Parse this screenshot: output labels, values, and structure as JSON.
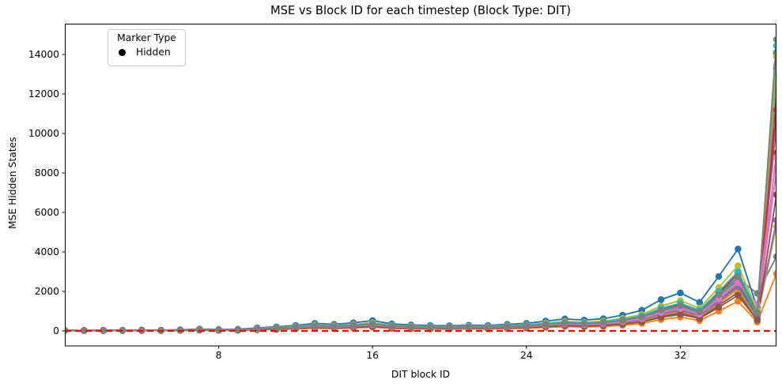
{
  "title": "MSE vs Block ID for each timestep (Block Type: DIT)",
  "axes": {
    "xlabel": "DIT block ID",
    "ylabel": "MSE Hidden States",
    "xticks": [
      8,
      16,
      24,
      32
    ],
    "yticks": [
      0,
      2000,
      4000,
      6000,
      8000,
      10000,
      12000,
      14000
    ],
    "xlim": [
      0,
      37
    ],
    "ylim": [
      -760,
      15560
    ],
    "grid": false
  },
  "legend": {
    "title": "Marker Type",
    "position": "upper left",
    "entries": [
      {
        "label": "Hidden",
        "marker": "circle",
        "color": "#000000"
      }
    ]
  },
  "baseline": {
    "y": 0,
    "color": "#ff0000",
    "style": "dashed"
  },
  "chart_data": {
    "type": "line",
    "marker": "circle",
    "x": [
      0,
      1,
      2,
      3,
      4,
      5,
      6,
      7,
      8,
      9,
      10,
      11,
      12,
      13,
      14,
      15,
      16,
      17,
      18,
      19,
      20,
      21,
      22,
      23,
      24,
      25,
      26,
      27,
      28,
      29,
      30,
      31,
      32,
      33,
      34,
      35,
      36,
      37
    ],
    "series": [
      {
        "name": "line-01",
        "color": "#1f77b4",
        "values": [
          19,
          15,
          22,
          21,
          26,
          22,
          34,
          52,
          41,
          49,
          82,
          112,
          150,
          210,
          180,
          225,
          285,
          195,
          165,
          150,
          142,
          158,
          150,
          180,
          210,
          270,
          330,
          300,
          338,
          435,
          570,
          862,
          1050,
          788,
          1500,
          2250,
          700,
          13300
        ]
      },
      {
        "name": "line-02",
        "color": "#ff7f0e",
        "values": [
          12,
          10,
          15,
          14,
          18,
          15,
          22,
          35,
          28,
          33,
          55,
          75,
          100,
          140,
          120,
          150,
          190,
          130,
          110,
          100,
          95,
          105,
          100,
          120,
          140,
          180,
          220,
          200,
          225,
          290,
          380,
          575,
          700,
          525,
          1000,
          1500,
          450,
          2900
        ]
      },
      {
        "name": "line-03",
        "color": "#2ca02c",
        "values": [
          21,
          17,
          26,
          24,
          30,
          26,
          38,
          60,
          47,
          55,
          94,
          128,
          170,
          238,
          204,
          255,
          323,
          221,
          187,
          170,
          162,
          179,
          170,
          204,
          238,
          306,
          374,
          340,
          383,
          493,
          646,
          978,
          1190,
          893,
          1700,
          2600,
          800,
          12400
        ]
      },
      {
        "name": "line-04",
        "color": "#d62728",
        "values": [
          24,
          19,
          29,
          27,
          33,
          29,
          43,
          67,
          52,
          62,
          105,
          143,
          190,
          266,
          228,
          285,
          361,
          247,
          209,
          190,
          181,
          200,
          190,
          228,
          266,
          342,
          418,
          380,
          428,
          551,
          722,
          1093,
          1330,
          998,
          1900,
          2900,
          950,
          11800
        ]
      },
      {
        "name": "line-05",
        "color": "#9467bd",
        "values": [
          20,
          16,
          23,
          22,
          27,
          23,
          35,
          55,
          43,
          51,
          86,
          117,
          156,
          218,
          187,
          234,
          296,
          203,
          172,
          156,
          148,
          164,
          156,
          187,
          218,
          281,
          343,
          312,
          351,
          452,
          593,
          897,
          1092,
          819,
          1560,
          2350,
          750,
          10400
        ]
      },
      {
        "name": "line-06",
        "color": "#8c564b",
        "values": [
          16,
          13,
          20,
          18,
          23,
          20,
          29,
          46,
          36,
          42,
          72,
          98,
          130,
          182,
          156,
          195,
          247,
          169,
          143,
          130,
          124,
          137,
          130,
          156,
          182,
          234,
          286,
          260,
          293,
          377,
          494,
          748,
          910,
          683,
          1300,
          1950,
          600,
          9000
        ]
      },
      {
        "name": "line-07",
        "color": "#e377c2",
        "values": [
          21,
          17,
          25,
          23,
          29,
          25,
          37,
          58,
          46,
          54,
          91,
          125,
          166,
          232,
          199,
          249,
          315,
          216,
          183,
          166,
          158,
          174,
          166,
          199,
          232,
          299,
          365,
          332,
          374,
          481,
          631,
          955,
          1162,
          872,
          1660,
          2500,
          800,
          8100
        ]
      },
      {
        "name": "line-08",
        "color": "#7f7f7f",
        "values": [
          22,
          18,
          26,
          25,
          31,
          26,
          40,
          62,
          48,
          57,
          97,
          132,
          176,
          246,
          211,
          264,
          334,
          229,
          194,
          176,
          167,
          185,
          176,
          211,
          246,
          317,
          387,
          352,
          396,
          510,
          669,
          1012,
          1232,
          924,
          1760,
          2650,
          1900,
          3760
        ]
      },
      {
        "name": "line-09",
        "color": "#bcbd22",
        "values": [
          18,
          14,
          21,
          20,
          25,
          21,
          32,
          49,
          39,
          46,
          77,
          105,
          140,
          196,
          168,
          210,
          266,
          182,
          154,
          140,
          133,
          147,
          140,
          168,
          196,
          252,
          308,
          280,
          315,
          406,
          532,
          805,
          980,
          735,
          1400,
          2100,
          650,
          5300
        ]
      },
      {
        "name": "line-10",
        "color": "#17becf",
        "values": [
          23,
          18,
          27,
          25,
          32,
          27,
          41,
          63,
          50,
          59,
          99,
          135,
          180,
          252,
          216,
          270,
          342,
          234,
          198,
          180,
          171,
          189,
          180,
          216,
          252,
          324,
          396,
          360,
          405,
          522,
          684,
          1035,
          1260,
          945,
          1800,
          2700,
          850,
          12800
        ]
      },
      {
        "name": "line-11",
        "color": "#1f77b4",
        "values": [
          35,
          28,
          41,
          39,
          48,
          41,
          62,
          97,
          76,
          90,
          152,
          207,
          276,
          386,
          331,
          414,
          524,
          359,
          304,
          276,
          262,
          290,
          276,
          331,
          386,
          497,
          607,
          552,
          621,
          800,
          1049,
          1587,
          1930,
          1449,
          2760,
          4150,
          1150,
          14040
        ]
      },
      {
        "name": "line-12",
        "color": "#ff7f0e",
        "values": [
          18,
          14,
          22,
          20,
          25,
          22,
          32,
          50,
          40,
          47,
          79,
          108,
          144,
          202,
          173,
          216,
          274,
          187,
          158,
          144,
          137,
          151,
          144,
          173,
          202,
          259,
          317,
          288,
          324,
          418,
          547,
          828,
          1008,
          756,
          1440,
          2150,
          700,
          13440
        ]
      },
      {
        "name": "line-13",
        "color": "#2ca02c",
        "values": [
          20,
          16,
          24,
          22,
          28,
          24,
          36,
          56,
          44,
          52,
          88,
          120,
          160,
          224,
          192,
          240,
          304,
          208,
          176,
          160,
          152,
          168,
          160,
          192,
          224,
          288,
          352,
          320,
          360,
          464,
          608,
          920,
          1120,
          840,
          1600,
          2400,
          750,
          14100
        ]
      },
      {
        "name": "line-14",
        "color": "#d62728",
        "values": [
          24,
          19,
          29,
          27,
          34,
          29,
          44,
          68,
          53,
          63,
          107,
          146,
          194,
          272,
          233,
          291,
          369,
          252,
          213,
          194,
          184,
          204,
          194,
          233,
          272,
          349,
          427,
          388,
          437,
          563,
          737,
          1116,
          1358,
          1019,
          1940,
          2950,
          900,
          11200
        ]
      },
      {
        "name": "line-15",
        "color": "#9467bd",
        "values": [
          19,
          15,
          22,
          21,
          26,
          22,
          33,
          52,
          41,
          48,
          81,
          111,
          148,
          207,
          178,
          222,
          281,
          192,
          163,
          148,
          141,
          155,
          148,
          178,
          207,
          266,
          326,
          296,
          333,
          429,
          562,
          851,
          1036,
          777,
          1480,
          2250,
          700,
          5600
        ]
      },
      {
        "name": "line-16",
        "color": "#8c564b",
        "values": [
          15,
          12,
          18,
          17,
          21,
          18,
          27,
          42,
          33,
          39,
          66,
          90,
          120,
          168,
          144,
          180,
          228,
          156,
          132,
          120,
          114,
          126,
          120,
          144,
          168,
          216,
          264,
          240,
          270,
          348,
          456,
          690,
          840,
          630,
          1200,
          1800,
          550,
          6900
        ]
      },
      {
        "name": "line-17",
        "color": "#e377c2",
        "values": [
          20,
          16,
          24,
          23,
          28,
          24,
          36,
          57,
          45,
          53,
          89,
          122,
          162,
          227,
          194,
          243,
          308,
          211,
          178,
          162,
          154,
          170,
          162,
          194,
          227,
          292,
          356,
          324,
          365,
          470,
          616,
          932,
          1134,
          851,
          1620,
          2450,
          1360,
          8800
        ]
      },
      {
        "name": "line-18",
        "color": "#bcbd22",
        "values": [
          28,
          22,
          33,
          31,
          39,
          33,
          50,
          77,
          61,
          72,
          121,
          165,
          220,
          308,
          264,
          330,
          418,
          286,
          242,
          220,
          209,
          231,
          220,
          264,
          308,
          396,
          484,
          440,
          495,
          638,
          836,
          1265,
          1540,
          1155,
          2200,
          3300,
          1050,
          13900
        ]
      },
      {
        "name": "line-19",
        "color": "#17becf",
        "values": [
          25,
          20,
          30,
          28,
          35,
          30,
          45,
          70,
          55,
          65,
          110,
          150,
          200,
          280,
          240,
          300,
          380,
          260,
          220,
          200,
          190,
          210,
          200,
          240,
          280,
          360,
          440,
          400,
          450,
          580,
          760,
          1150,
          1400,
          1050,
          2000,
          3000,
          950,
          14440
        ]
      },
      {
        "name": "line-20",
        "color": "#7f7f7f",
        "values": [
          23,
          18,
          28,
          26,
          32,
          28,
          41,
          64,
          51,
          60,
          101,
          138,
          184,
          258,
          221,
          276,
          350,
          239,
          202,
          184,
          175,
          193,
          184,
          221,
          258,
          331,
          405,
          368,
          414,
          534,
          699,
          1058,
          1288,
          966,
          1840,
          2750,
          900,
          14760
        ]
      }
    ]
  }
}
